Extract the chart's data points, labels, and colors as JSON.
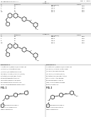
{
  "bg_color": "#ffffff",
  "title_text": "1/1",
  "header_left": "US-HETEROCYCLIC-1-A",
  "header_right": "Fig. 1 - 2009",
  "table1_title": "TABLE 1",
  "table2_title": "TABLE 2",
  "example1_label": "Example 1",
  "example2_label": "Example 2",
  "fig1_label": "FIG. 1",
  "fig2_label": "FIG. 2",
  "line_color": "#999999",
  "text_color": "#222222",
  "struct_color": "#111111",
  "table1_cols": [
    "R",
    "Example",
    "MS (ESI)",
    "Yield"
  ],
  "table1_rows": [
    [
      "H",
      "1a",
      "423.2",
      "72"
    ],
    [
      "F",
      "1b",
      "441.2",
      "68"
    ],
    [
      "Cl",
      "1c",
      "457.2",
      "65"
    ],
    [
      "Me",
      "1d",
      "437.2",
      "70"
    ]
  ],
  "table2_cols": [
    "R",
    "Example",
    "MS (ESI)",
    "Yield"
  ],
  "table2_rows": [
    [
      "H",
      "2a",
      "408.2",
      "68"
    ],
    [
      "F",
      "2b",
      "426.2",
      "62"
    ],
    [
      "Cl",
      "2c",
      "442.2",
      "60"
    ],
    [
      "Me",
      "2d",
      "422.2",
      "65"
    ]
  ]
}
